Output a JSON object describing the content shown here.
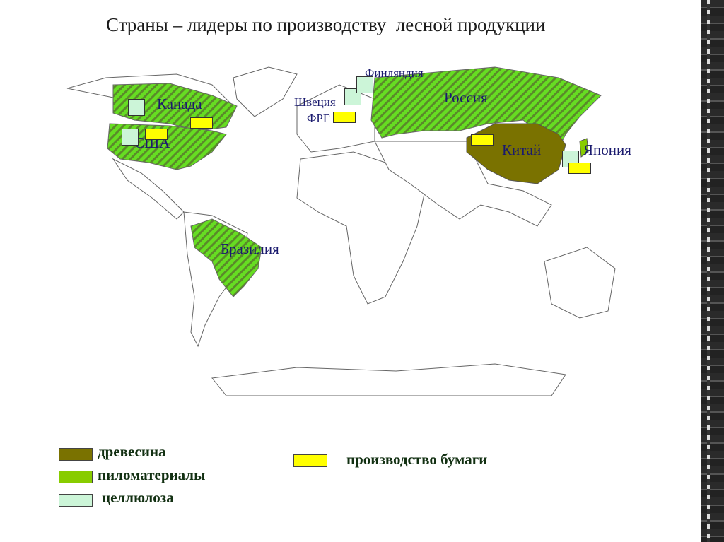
{
  "title": "Страны – лидеры по производству  лесной продукции",
  "map": {
    "labels": {
      "canada": "Канада",
      "usa": "США",
      "brazil": "Бразилия",
      "finland": "Финляндия",
      "sweden": "Швеция",
      "germany": "ФРГ",
      "russia": "Россия",
      "china": "Китай",
      "japan": "Япония"
    }
  },
  "legend": {
    "items": [
      {
        "label": "древесина",
        "color": "#7a7200"
      },
      {
        "label": "пиломатериалы",
        "color": "#88cc00"
      },
      {
        "label": "целлюлоза",
        "color": "#ccf5d8"
      },
      {
        "label": "производство бумаги",
        "color": "#ffff00"
      }
    ]
  },
  "colors": {
    "hatch_green": "#66dd22",
    "hatch_dark": "#5a8a2a",
    "wood": "#7a7200",
    "paper": "#ffff00",
    "pulp": "#ccf5d8"
  }
}
